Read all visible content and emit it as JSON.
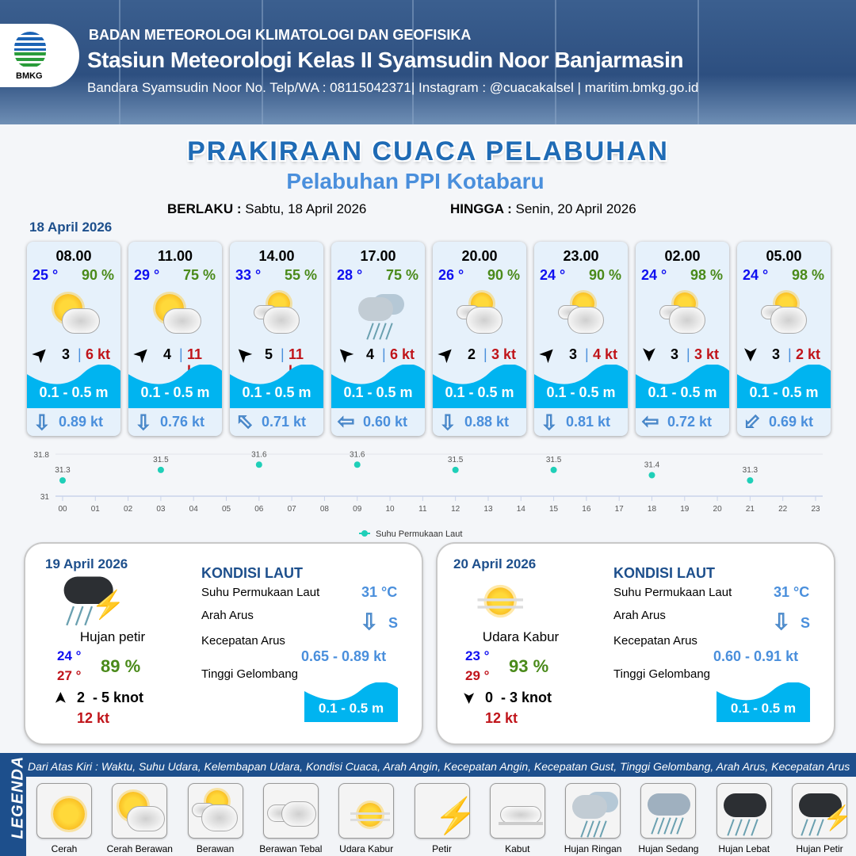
{
  "header": {
    "agency": "BADAN METEOROLOGI KLIMATOLOGI DAN GEOFISIKA",
    "station": "Stasiun Meteorologi Kelas II Syamsudin Noor Banjarmasin",
    "contact": "Bandara Syamsudin Noor No. Telp/WA : 08115042371| Instagram : @cuacakalsel | maritim.bmkg.go.id",
    "logo_text": "BMKG"
  },
  "title": "PRAKIRAAN CUACA PELABUHAN",
  "subtitle": "Pelabuhan PPI Kotabaru",
  "validity": {
    "from_label": "BERLAKU :",
    "from": "Sabtu, 18 April 2026",
    "to_label": "HINGGA :",
    "to": "Senin, 20 April 2026"
  },
  "day1": {
    "date": "18 April 2026",
    "cards": [
      {
        "time": "08.00",
        "temp": "25 °",
        "humidity": "90 %",
        "condition": "cerah-berawan",
        "wind_dir_deg": 45,
        "wind": "3",
        "gust": "6 kt",
        "wave": "0.1 - 0.5 m",
        "current_dir": "S",
        "current_dir_deg": 180,
        "current": "0.89 kt"
      },
      {
        "time": "11.00",
        "temp": "29 °",
        "humidity": "75 %",
        "condition": "cerah-berawan",
        "wind_dir_deg": 45,
        "wind": "4",
        "gust": "11 kt",
        "wave": "0.1 - 0.5 m",
        "current_dir": "S",
        "current_dir_deg": 180,
        "current": "0.76 kt"
      },
      {
        "time": "14.00",
        "temp": "33 °",
        "humidity": "55 %",
        "condition": "berawan",
        "wind_dir_deg": -45,
        "wind": "5",
        "gust": "11 kt",
        "wave": "0.1 - 0.5 m",
        "current_dir": "NW",
        "current_dir_deg": -45,
        "current": "0.71 kt"
      },
      {
        "time": "17.00",
        "temp": "28 °",
        "humidity": "75 %",
        "condition": "hujan-ringan",
        "wind_dir_deg": -45,
        "wind": "4",
        "gust": "6 kt",
        "wave": "0.1 - 0.5 m",
        "current_dir": "W",
        "current_dir_deg": -90,
        "current": "0.60 kt"
      },
      {
        "time": "20.00",
        "temp": "26 °",
        "humidity": "90 %",
        "condition": "berawan",
        "wind_dir_deg": 45,
        "wind": "2",
        "gust": "3 kt",
        "wave": "0.1 - 0.5 m",
        "current_dir": "S",
        "current_dir_deg": 180,
        "current": "0.88 kt"
      },
      {
        "time": "23.00",
        "temp": "24 °",
        "humidity": "90 %",
        "condition": "berawan",
        "wind_dir_deg": 45,
        "wind": "3",
        "gust": "4 kt",
        "wave": "0.1 - 0.5 m",
        "current_dir": "S",
        "current_dir_deg": 180,
        "current": "0.81 kt"
      },
      {
        "time": "02.00",
        "temp": "24 °",
        "humidity": "98 %",
        "condition": "berawan",
        "wind_dir_deg": 180,
        "wind": "3",
        "gust": "3 kt",
        "wave": "0.1 - 0.5 m",
        "current_dir": "W",
        "current_dir_deg": -90,
        "current": "0.72 kt"
      },
      {
        "time": "05.00",
        "temp": "24 °",
        "humidity": "98 %",
        "condition": "berawan",
        "wind_dir_deg": 180,
        "wind": "3",
        "gust": "2 kt",
        "wave": "0.1 - 0.5 m",
        "current_dir": "SW",
        "current_dir_deg": -135,
        "current": "0.69 kt"
      }
    ]
  },
  "chart_data": {
    "type": "scatter",
    "title": "",
    "xlabel": "",
    "ylabel": "",
    "x_ticks": [
      "00",
      "01",
      "02",
      "03",
      "04",
      "05",
      "06",
      "07",
      "08",
      "09",
      "10",
      "11",
      "12",
      "13",
      "14",
      "15",
      "16",
      "17",
      "18",
      "19",
      "20",
      "21",
      "22",
      "23"
    ],
    "y_ticks": [
      "31",
      "31.8"
    ],
    "ylim": [
      31,
      31.8
    ],
    "grid": "horizontal",
    "legend": "bottom",
    "series": [
      {
        "name": "Suhu Permukaan Laut",
        "color": "#1fcfb8",
        "x": [
          "00",
          "03",
          "06",
          "09",
          "12",
          "15",
          "18",
          "21"
        ],
        "y": [
          31.3,
          31.5,
          31.6,
          31.6,
          31.5,
          31.5,
          31.4,
          31.3
        ],
        "labels": [
          "31.3",
          "31.5",
          "31.6",
          "31.6",
          "31.5",
          "31.5",
          "31.4",
          "31.3"
        ]
      }
    ]
  },
  "panels": [
    {
      "date": "19 April 2026",
      "condition": "Hujan petir",
      "tmin": "24 °",
      "tmax": "27 °",
      "humidity": "89 %",
      "wind_dir_deg": 0,
      "wind": "2  - 5 knot",
      "gust": "12 kt",
      "heading": "KONDISI LAUT",
      "sst_label": "Suhu Permukaan Laut",
      "sst": "31 °C",
      "cur_dir_label": "Arah Arus",
      "cur_dir": "S",
      "cur_speed_label": "Kecepatan Arus",
      "cur_speed": "0.65 - 0.89 kt",
      "wave_label": "Tinggi Gelombang",
      "wave": "0.1 - 0.5 m"
    },
    {
      "date": "20 April 2026",
      "condition": "Udara Kabur",
      "tmin": "23 °",
      "tmax": "29 °",
      "humidity": "93 %",
      "wind_dir_deg": 180,
      "wind": "0  - 3 knot",
      "gust": "12 kt",
      "heading": "KONDISI LAUT",
      "sst_label": "Suhu Permukaan Laut",
      "sst": "31 °C",
      "cur_dir_label": "Arah Arus",
      "cur_dir": "S",
      "cur_speed_label": "Kecepatan Arus",
      "cur_speed": "0.60 - 0.91 kt",
      "wave_label": "Tinggi Gelombang",
      "wave": "0.1 - 0.5 m"
    }
  ],
  "legend": {
    "title": "LEGENDA",
    "description": "Dari Atas Kiri : Waktu, Suhu Udara, Kelembapan Udara, Kondisi Cuaca, Arah Angin, Kecepatan Angin, Kecepatan Gust, Tinggi Gelombang, Arah Arus, Kecepatan Arus",
    "items": [
      "Cerah",
      "Cerah Berawan",
      "Berawan",
      "Berawan Tebal",
      "Udara Kabur",
      "Petir",
      "Kabut",
      "Hujan Ringan",
      "Hujan Sedang",
      "Hujan Lebat",
      "Hujan Petir"
    ]
  },
  "colors": {
    "brand": "#1d4f8c",
    "temp": "#1010f0",
    "humidity": "#4a8a1a",
    "gust": "#c0141a",
    "wave": "#00b4f0",
    "current": "#4a8fdc"
  }
}
